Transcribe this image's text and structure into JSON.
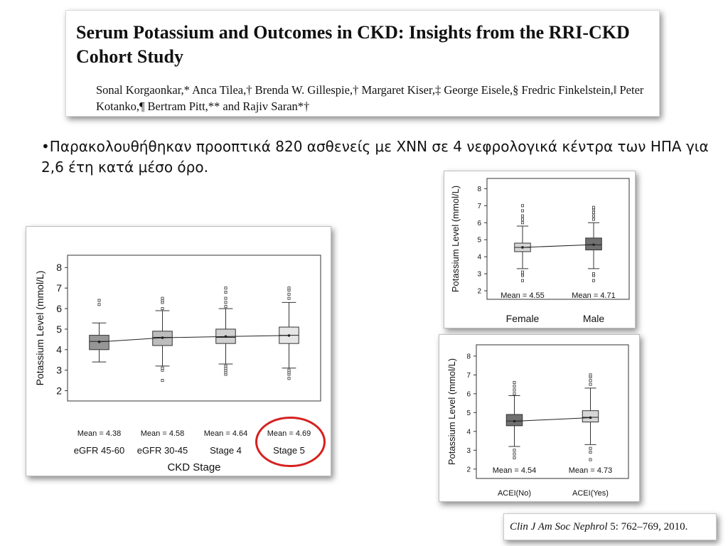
{
  "paper": {
    "title": "Serum Potassium and Outcomes in CKD: Insights from the RRI-CKD Cohort Study",
    "authors": "Sonal Korgaonkar,* Anca Tilea,† Brenda W. Gillespie,† Margaret Kiser,‡ George Eisele,§ Fredric Finkelstein,‖ Peter Kotanko,¶ Bertram Pitt,** and Rajiv Saran*†"
  },
  "bullet_text": "•Παρακολουθήθηκαν προοπτικά 820 ασθενείς με ΧΝΝ σε 4 νεφρολογικά κέντρα των ΗΠΑ για 2,6 έτη κατά μέσο όρο.",
  "citation": {
    "journal": "Clin J Am Soc Nephrol",
    "details": " 5: 762–769, 2010."
  },
  "highlight_color": "#d62020",
  "chart_data": [
    {
      "id": "ckd",
      "type": "box",
      "title": "",
      "xlabel": "CKD Stage",
      "ylabel": "Potassium Level (mmol/L)",
      "ylim": [
        1.5,
        8.6
      ],
      "yticks": [
        2,
        3,
        4,
        5,
        6,
        7,
        8
      ],
      "categories": [
        "eGFR 45-60",
        "eGFR 30-45",
        "Stage 4",
        "Stage 5"
      ],
      "box_colors": [
        "#969696",
        "#bdbdbd",
        "#d0d0d0",
        "#e6e6e6"
      ],
      "boxes": [
        {
          "q1": 4.0,
          "median": 4.4,
          "q3": 4.7,
          "whisker_low": 3.4,
          "whisker_high": 5.3,
          "outliers": [
            6.2,
            6.4
          ]
        },
        {
          "q1": 4.2,
          "median": 4.6,
          "q3": 4.9,
          "whisker_low": 3.2,
          "whisker_high": 5.9,
          "outliers": [
            2.5,
            3.0,
            3.1,
            6.0,
            6.3,
            6.4,
            6.5
          ]
        },
        {
          "q1": 4.3,
          "median": 4.6,
          "q3": 5.0,
          "whisker_low": 3.3,
          "whisker_high": 6.0,
          "outliers": [
            2.8,
            2.9,
            3.0,
            3.1,
            3.2,
            6.1,
            6.3,
            6.5,
            6.8,
            7.0
          ]
        },
        {
          "q1": 4.3,
          "median": 4.7,
          "q3": 5.1,
          "whisker_low": 3.1,
          "whisker_high": 6.3,
          "outliers": [
            2.6,
            2.8,
            2.9,
            3.0,
            6.5,
            6.7,
            6.9,
            7.0
          ]
        }
      ],
      "means": [
        4.38,
        4.58,
        4.64,
        4.69
      ],
      "mean_labels": [
        "Mean = 4.38",
        "Mean = 4.58",
        "Mean = 4.64",
        "Mean = 4.69"
      ],
      "highlighted_category": "Stage 5"
    },
    {
      "id": "sex",
      "type": "box",
      "title": "",
      "xlabel": "",
      "ylabel": "Potassium Level (mmol/L)",
      "ylim": [
        1.5,
        8.6
      ],
      "yticks": [
        2,
        3,
        4,
        5,
        6,
        7,
        8
      ],
      "categories": [
        "Female",
        "Male"
      ],
      "box_colors": [
        "#d6d6d6",
        "#707070"
      ],
      "boxes": [
        {
          "q1": 4.3,
          "median": 4.55,
          "q3": 4.8,
          "whisker_low": 3.3,
          "whisker_high": 5.8,
          "outliers": [
            2.6,
            2.9,
            3.0,
            3.1,
            6.0,
            6.2,
            6.4,
            6.7,
            7.0
          ]
        },
        {
          "q1": 4.4,
          "median": 4.7,
          "q3": 5.1,
          "whisker_low": 3.3,
          "whisker_high": 6.0,
          "outliers": [
            2.6,
            2.9,
            3.0,
            6.2,
            6.4,
            6.6,
            6.8,
            6.9
          ]
        }
      ],
      "means": [
        4.55,
        4.71
      ],
      "mean_labels": [
        "Mean = 4.55",
        "Mean = 4.71"
      ]
    },
    {
      "id": "acei",
      "type": "box",
      "title": "",
      "xlabel": "",
      "ylabel": "Potassium Level (mmol/L)",
      "ylim": [
        1.5,
        8.6
      ],
      "yticks": [
        2,
        3,
        4,
        5,
        6,
        7,
        8
      ],
      "categories": [
        "ACEI(No)",
        "ACEI(Yes)"
      ],
      "box_colors": [
        "#707070",
        "#d6d6d6"
      ],
      "boxes": [
        {
          "q1": 4.3,
          "median": 4.55,
          "q3": 4.9,
          "whisker_low": 3.2,
          "whisker_high": 5.9,
          "outliers": [
            2.6,
            2.8,
            3.0,
            6.0,
            6.2,
            6.4,
            6.6
          ]
        },
        {
          "q1": 4.5,
          "median": 4.75,
          "q3": 5.1,
          "whisker_low": 3.3,
          "whisker_high": 6.3,
          "outliers": [
            2.5,
            2.9,
            3.1,
            6.5,
            6.7,
            6.9,
            7.0
          ]
        }
      ],
      "means": [
        4.54,
        4.73
      ],
      "mean_labels": [
        "Mean = 4.54",
        "Mean = 4.73"
      ]
    }
  ]
}
